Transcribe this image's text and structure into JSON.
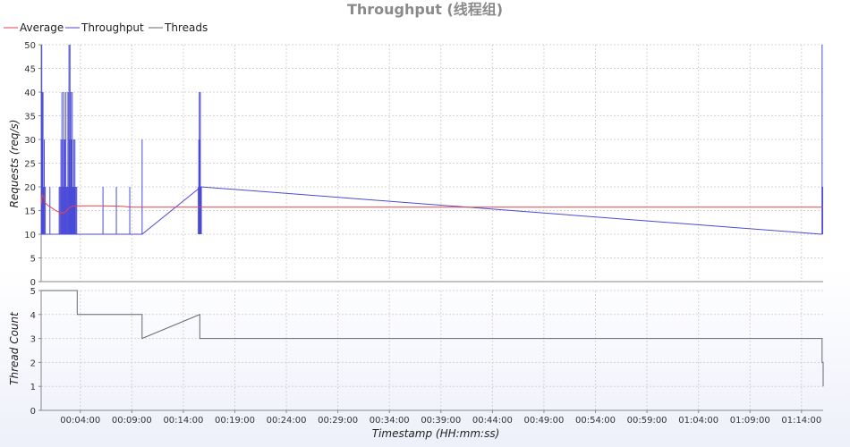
{
  "chart_data": {
    "title": "Throughput (线程组)",
    "legend": [
      {
        "name": "Average",
        "color": "#e0474c"
      },
      {
        "name": "Throughput",
        "color": "#4a4ad8"
      },
      {
        "name": "Threads",
        "color": "#666677"
      }
    ],
    "legend_position": "top-left",
    "grid": true,
    "xlabel": "Timestamp (HH:mm:ss)",
    "x_tick_labels": [
      "00:04:00",
      "00:09:00",
      "00:14:00",
      "00:19:00",
      "00:24:00",
      "00:29:00",
      "00:34:00",
      "00:39:00",
      "00:44:00",
      "00:49:00",
      "00:54:00",
      "00:59:00",
      "01:04:00",
      "01:09:00",
      "01:14:00"
    ],
    "x_ticks_min": [
      4,
      9,
      14,
      19,
      24,
      29,
      34,
      39,
      44,
      49,
      54,
      59,
      64,
      69,
      74
    ],
    "xlim_min": [
      0.2,
      76.1
    ],
    "charts": [
      {
        "type": "line",
        "ylabel": "Requests (req/s)",
        "ylim": [
          0,
          50
        ],
        "yticks": [
          0,
          5,
          10,
          15,
          20,
          25,
          30,
          35,
          40,
          45,
          50
        ],
        "series": [
          {
            "name": "Throughput",
            "color": "#4a4ad8",
            "spikes_min_value": [
              [
                0.22,
                40
              ],
              [
                0.26,
                50
              ],
              [
                0.3,
                40
              ],
              [
                0.34,
                30
              ],
              [
                0.38,
                40
              ],
              [
                0.42,
                20
              ],
              [
                0.5,
                30
              ],
              [
                0.6,
                20
              ],
              [
                1.05,
                20
              ],
              [
                2.12,
                30
              ],
              [
                2.22,
                40
              ],
              [
                2.3,
                30
              ],
              [
                2.4,
                40
              ],
              [
                2.5,
                30
              ],
              [
                2.6,
                40
              ],
              [
                2.7,
                20
              ],
              [
                2.8,
                40
              ],
              [
                2.9,
                50
              ],
              [
                2.95,
                30
              ],
              [
                3.0,
                50
              ],
              [
                3.08,
                40
              ],
              [
                3.15,
                30
              ],
              [
                3.22,
                40
              ],
              [
                3.3,
                20
              ],
              [
                3.36,
                30
              ],
              [
                3.42,
                20
              ],
              [
                3.48,
                30
              ],
              [
                6.2,
                20
              ],
              [
                7.5,
                20
              ],
              [
                8.8,
                20
              ],
              [
                10.0,
                30
              ],
              [
                15.5,
                30
              ],
              [
                15.55,
                40
              ],
              [
                15.6,
                30
              ],
              [
                15.65,
                40
              ],
              [
                15.7,
                20
              ],
              [
                76.0,
                50
              ],
              [
                76.05,
                20
              ]
            ],
            "fill_blocks_min_value": [
              [
                0.2,
                0.5,
                20
              ],
              [
                1.9,
                3.7,
                20
              ],
              [
                15.4,
                15.8,
                20
              ],
              [
                75.95,
                76.1,
                20
              ]
            ],
            "line_min_value": [
              [
                0.2,
                10
              ],
              [
                10.0,
                10
              ],
              [
                15.7,
                20
              ],
              [
                76.0,
                10
              ]
            ]
          },
          {
            "name": "Average",
            "color": "#e0474c",
            "line_min_value": [
              [
                0.2,
                16.3
              ],
              [
                0.3,
                18.3
              ],
              [
                0.45,
                18.0
              ],
              [
                0.6,
                16.6
              ],
              [
                0.9,
                16.0
              ],
              [
                1.2,
                15.6
              ],
              [
                1.6,
                15.0
              ],
              [
                1.9,
                14.7
              ],
              [
                2.1,
                14.3
              ],
              [
                2.25,
                14.7
              ],
              [
                2.4,
                14.4
              ],
              [
                2.6,
                14.8
              ],
              [
                2.8,
                15.3
              ],
              [
                3.0,
                15.7
              ],
              [
                3.3,
                16.0
              ],
              [
                3.7,
                16.0
              ],
              [
                6.0,
                16.0
              ],
              [
                8.0,
                15.9
              ],
              [
                9.0,
                15.7
              ],
              [
                15.0,
                15.7
              ],
              [
                76.1,
                15.7
              ]
            ]
          }
        ]
      },
      {
        "type": "line",
        "ylabel": "Thread Count",
        "ylim": [
          0,
          5
        ],
        "yticks": [
          0,
          1,
          2,
          3,
          4,
          5
        ],
        "series": [
          {
            "name": "Threads",
            "color": "#666677",
            "line_min_value": [
              [
                0.2,
                5
              ],
              [
                3.7,
                5
              ],
              [
                3.7,
                4
              ],
              [
                10.0,
                4
              ],
              [
                10.0,
                3
              ],
              [
                15.6,
                4
              ],
              [
                15.6,
                3
              ],
              [
                76.0,
                3
              ],
              [
                76.0,
                2
              ],
              [
                76.1,
                2
              ],
              [
                76.1,
                1
              ]
            ]
          }
        ]
      }
    ]
  }
}
